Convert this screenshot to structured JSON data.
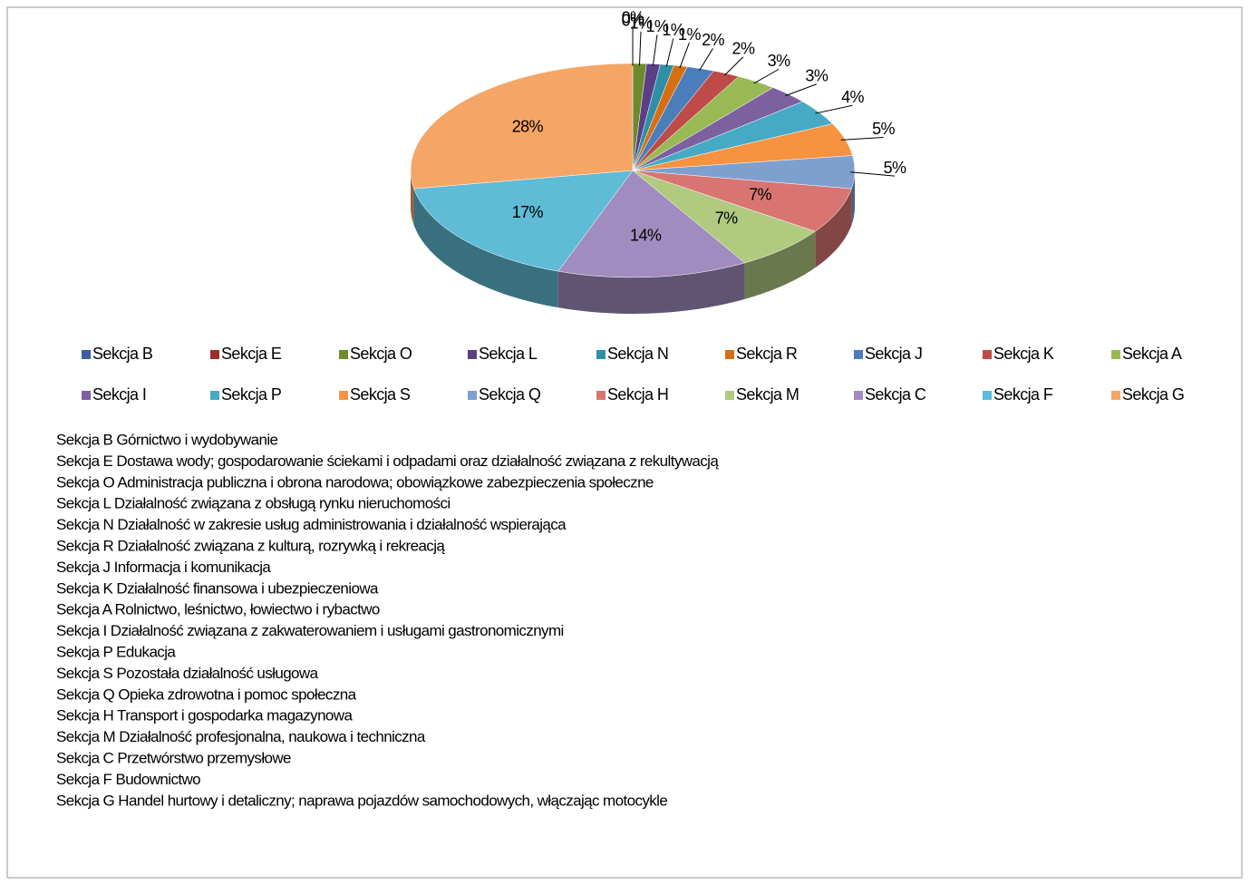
{
  "chart_data": {
    "type": "pie3d",
    "categories": [
      "Sekcja B",
      "Sekcja E",
      "Sekcja O",
      "Sekcja L",
      "Sekcja N",
      "Sekcja R",
      "Sekcja J",
      "Sekcja K",
      "Sekcja A",
      "Sekcja I",
      "Sekcja P",
      "Sekcja S",
      "Sekcja Q",
      "Sekcja H",
      "Sekcja M",
      "Sekcja C",
      "Sekcja F",
      "Sekcja G"
    ],
    "values": [
      0,
      0,
      1,
      1,
      1,
      1,
      2,
      2,
      3,
      3,
      4,
      5,
      5,
      7,
      7,
      14,
      17,
      28
    ],
    "value_labels": [
      "0%",
      "0%",
      "1%",
      "1%",
      "1%",
      "1%",
      "2%",
      "2%",
      "3%",
      "3%",
      "4%",
      "5%",
      "5%",
      "7%",
      "7%",
      "14%",
      "17%",
      "28%"
    ],
    "colors": [
      "#3b5f9e",
      "#9b2d2a",
      "#6d8a2f",
      "#5b3f86",
      "#2f8fa8",
      "#d66f12",
      "#4a7ebb",
      "#be4b48",
      "#98b954",
      "#7d60a0",
      "#46aac5",
      "#f69240",
      "#7f9fcf",
      "#d87572",
      "#b0ca80",
      "#a08cbf",
      "#5fbbd6",
      "#f5a565"
    ],
    "legend": "bottom",
    "descriptions": [
      "Sekcja B Górnictwo i wydobywanie",
      "Sekcja E Dostawa wody; gospodarowanie ściekami i odpadami oraz działalność związana z rekultywacją",
      "Sekcja O Administracja publiczna i obrona narodowa; obowiązkowe zabezpieczenia społeczne",
      "Sekcja L Działalność związana z obsługą rynku nieruchomości",
      "Sekcja N Działalność w zakresie usług administrowania i działalność wspierająca",
      "Sekcja R Działalność związana z kulturą, rozrywką i rekreacją",
      "Sekcja J Informacja i komunikacja",
      "Sekcja K Działalność finansowa i ubezpieczeniowa",
      "Sekcja A Rolnictwo, leśnictwo, łowiectwo i rybactwo",
      "Sekcja I Działalność związana z zakwaterowaniem i usługami gastronomicznymi",
      "Sekcja P Edukacja",
      "Sekcja S Pozostała działalność usługowa",
      "Sekcja Q Opieka zdrowotna i pomoc społeczna",
      "Sekcja H Transport i gospodarka magazynowa",
      "Sekcja M Działalność profesjonalna, naukowa i techniczna",
      "Sekcja C Przetwórstwo przemysłowe",
      "Sekcja F Budownictwo",
      "Sekcja G Handel hurtowy i detaliczny; naprawa pojazdów samochodowych, włączając motocykle"
    ]
  }
}
